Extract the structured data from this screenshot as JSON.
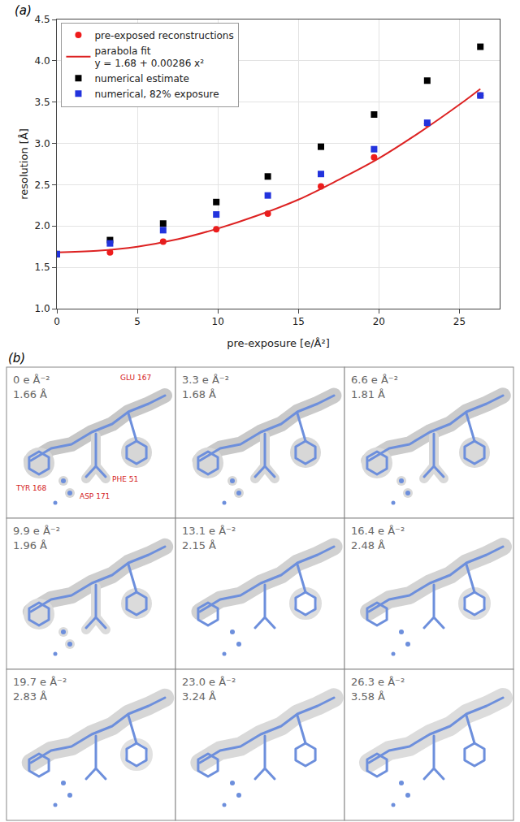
{
  "chart_data": {
    "type": "scatter",
    "panel_label": "(a)",
    "x_label": "pre-exposure [e/Å²]",
    "y_label": "resolution [Å]",
    "x": [
      0,
      3.3,
      6.6,
      9.9,
      13.1,
      16.4,
      19.7,
      23.0,
      26.3
    ],
    "series": [
      {
        "name": "pre-exposed reconstructions",
        "color": "#ee1c1c",
        "marker": "circle",
        "values": [
          1.66,
          1.68,
          1.81,
          1.96,
          2.15,
          2.48,
          2.83,
          3.24,
          3.58
        ]
      },
      {
        "name": "parabola fit",
        "color": "#dd2222",
        "type": "line",
        "line_style": "solid",
        "x": [
          0,
          2.5,
          5,
          7.5,
          10,
          12.5,
          15,
          17.5,
          20,
          22.5,
          25,
          26.3
        ],
        "values": [
          1.68,
          1.7,
          1.75,
          1.84,
          1.97,
          2.13,
          2.32,
          2.56,
          2.82,
          3.13,
          3.47,
          3.66
        ]
      },
      {
        "name": "numerical estimate",
        "color": "#000000",
        "marker": "square",
        "values": [
          1.66,
          1.83,
          2.03,
          2.29,
          2.6,
          2.96,
          3.35,
          3.76,
          4.17
        ]
      },
      {
        "name": "numerical, 82% exposure",
        "color": "#2233dd",
        "marker": "square",
        "values": [
          1.66,
          1.79,
          1.95,
          2.14,
          2.37,
          2.63,
          2.93,
          3.25,
          3.58
        ]
      }
    ],
    "annotations": [
      "y = 1.68 + 0.00286 x²"
    ],
    "xlim": [
      0,
      27.5
    ],
    "xticks": [
      0,
      5,
      10,
      15,
      20,
      25
    ],
    "ylim": [
      1.0,
      4.5
    ],
    "yticks": [
      {
        "value": 1.0,
        "label": "1.0"
      },
      {
        "value": 1.5,
        "label": "1.5"
      },
      {
        "value": 2.0,
        "label": "2.0"
      },
      {
        "value": 2.5,
        "label": "2.5"
      },
      {
        "value": 3.0,
        "label": "3.0"
      },
      {
        "value": 3.5,
        "label": "3.5"
      },
      {
        "value": 4.0,
        "label": "4.0"
      },
      {
        "value": 4.5,
        "label": "4.5"
      }
    ],
    "grid": true,
    "legend": "top-left"
  },
  "panel_b": {
    "panel_label": "(b)",
    "residue_labels": [
      "GLU 167",
      "PHE 51",
      "TYR 168",
      "ASP 171"
    ],
    "panels": [
      {
        "exposure": "0 e Å⁻²",
        "resolution": "1.66 Å"
      },
      {
        "exposure": "3.3 e Å⁻²",
        "resolution": "1.68 Å"
      },
      {
        "exposure": "6.6 e Å⁻²",
        "resolution": "1.81 Å"
      },
      {
        "exposure": "9.9 e Å⁻²",
        "resolution": "1.96 Å"
      },
      {
        "exposure": "13.1 e Å⁻²",
        "resolution": "2.15 Å"
      },
      {
        "exposure": "16.4 e Å⁻²",
        "resolution": "2.48 Å"
      },
      {
        "exposure": "19.7 e Å⁻²",
        "resolution": "2.83 Å"
      },
      {
        "exposure": "23.0 e Å⁻²",
        "resolution": "3.24 Å"
      },
      {
        "exposure": "26.3 e Å⁻²",
        "resolution": "3.58 Å"
      }
    ]
  }
}
